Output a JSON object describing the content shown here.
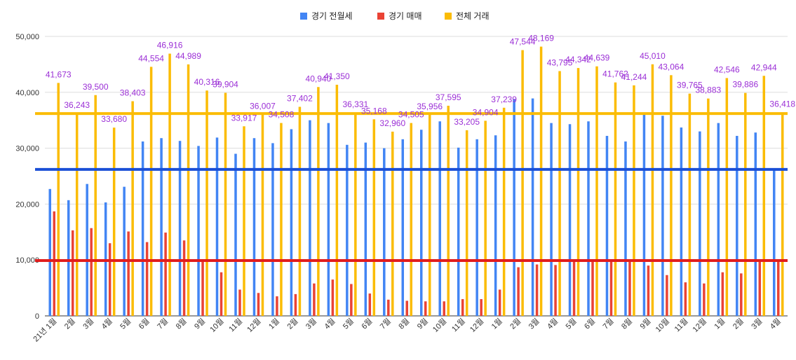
{
  "chart_data": {
    "type": "bar",
    "title": "",
    "xlabel": "",
    "ylabel": "",
    "ylim": [
      0,
      52000
    ],
    "yticks": [
      0,
      10000,
      20000,
      30000,
      40000,
      50000
    ],
    "ytick_labels": [
      "0",
      "10,000",
      "20,000",
      "30,000",
      "40,000",
      "50,000"
    ],
    "grid": "horizontal",
    "legend_position": "top",
    "categories": [
      "21년 1월",
      "2월",
      "3월",
      "4월",
      "5월",
      "6월",
      "7월",
      "8월",
      "9월",
      "10월",
      "11월",
      "12월",
      "1월",
      "2월",
      "3월",
      "4월",
      "5월",
      "6월",
      "7월",
      "8월",
      "9월",
      "10월",
      "11월",
      "12월",
      "1월",
      "2월",
      "3월",
      "4월",
      "5월",
      "6월",
      "7월",
      "8월",
      "9월",
      "10월",
      "11월",
      "12월",
      "1월",
      "2월",
      "3월",
      "4월"
    ],
    "series": [
      {
        "name": "경기 전월세",
        "color": "#4285f4",
        "values": [
          22700,
          20700,
          23600,
          20300,
          23100,
          31200,
          31800,
          31300,
          30400,
          31900,
          29000,
          31800,
          30900,
          33400,
          35000,
          34500,
          30600,
          31000,
          30000,
          31600,
          33300,
          34800,
          30100,
          31600,
          32300,
          38800,
          38900,
          34500,
          34300,
          34800,
          32200,
          31200,
          36000,
          35800,
          33700,
          33000,
          34500,
          32200,
          32800,
          26200
        ]
      },
      {
        "name": "경기 매매",
        "color": "#ea4335",
        "values": [
          18700,
          15300,
          15700,
          13000,
          15100,
          13200,
          14900,
          13500,
          9900,
          7800,
          4700,
          4100,
          3500,
          3900,
          5800,
          6500,
          5700,
          4000,
          2900,
          2700,
          2600,
          2600,
          3000,
          3000,
          4700,
          8700,
          9200,
          9100,
          9900,
          9900,
          9900,
          9900,
          9000,
          7300,
          6000,
          5800,
          7800,
          7600,
          9900,
          9900
        ]
      },
      {
        "name": "전체 거래",
        "color": "#fbbc04",
        "values": [
          41673,
          36243,
          39500,
          33680,
          38403,
          44554,
          46916,
          44989,
          40316,
          39904,
          33917,
          36007,
          34508,
          37402,
          40940,
          41350,
          36331,
          35168,
          32960,
          34505,
          35956,
          37595,
          33205,
          34904,
          37239,
          47544,
          48169,
          43795,
          44342,
          44639,
          41762,
          41244,
          45010,
          43064,
          39765,
          38883,
          42546,
          39886,
          42944,
          36418
        ],
        "labels": [
          "41,673",
          "36,243",
          "39,500",
          "33,680",
          "38,403",
          "44,554",
          "46,916",
          "44,989",
          "40,316",
          "39,904",
          "33,917",
          "36,007",
          "34,508",
          "37,402",
          "40,940",
          "41,350",
          "36,331",
          "35,168",
          "32,960",
          "34,505",
          "35,956",
          "37,595",
          "33,205",
          "34,904",
          "37,239",
          "47,544",
          "48,169",
          "43,795",
          "44,342",
          "44,639",
          "41,762",
          "41,244",
          "45,010",
          "43,064",
          "39,765",
          "38,883",
          "42,546",
          "39,886",
          "42,944",
          "36,418"
        ]
      }
    ],
    "reference_lines": [
      {
        "value": 36200,
        "color": "#fbbc04"
      },
      {
        "value": 26200,
        "color": "#1a4fd6"
      },
      {
        "value": 9900,
        "color": "#e11d1d"
      }
    ]
  }
}
